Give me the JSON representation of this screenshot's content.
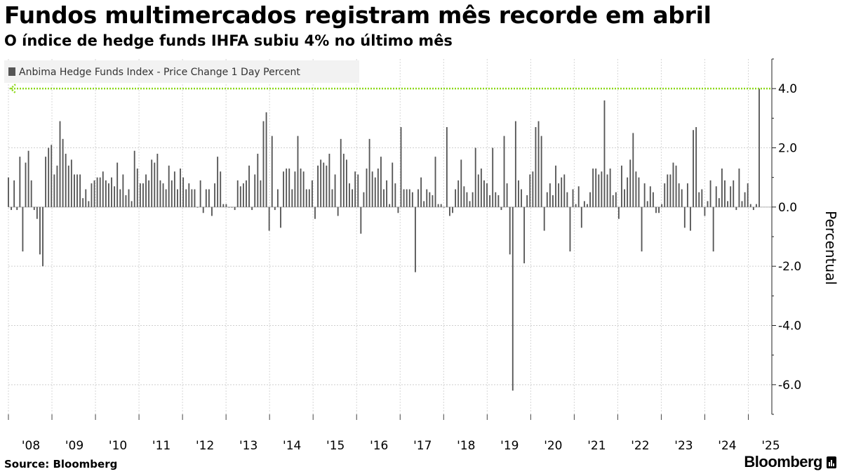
{
  "title": "Fundos multimercados registram mês recorde em abril",
  "subtitle": "O índice de hedge funds IHFA subiu 4% no último mês",
  "footer": {
    "source": "Source: Bloomberg",
    "brand": "Bloomberg"
  },
  "chart_data": {
    "type": "bar",
    "legend_position": "top-left",
    "grid": true,
    "ylabel": "Percentual",
    "ylim": [
      -7,
      5
    ],
    "yticks": [
      4,
      2,
      0,
      -2,
      -4,
      -6
    ],
    "ytick_labels": [
      "4.0",
      "2.0",
      "0.0",
      "-2.0",
      "-4.0",
      "-6.0"
    ],
    "xtick_labels": [
      "'08",
      "'09",
      "'10",
      "'11",
      "'12",
      "'13",
      "'14",
      "'15",
      "'16",
      "'17",
      "'18",
      "'19",
      "'20",
      "'21",
      "'22",
      "'23",
      "'24",
      "'25"
    ],
    "xtick_years": [
      2008,
      2009,
      2010,
      2011,
      2012,
      2013,
      2014,
      2015,
      2016,
      2017,
      2018,
      2019,
      2020,
      2021,
      2022,
      2023,
      2024,
      2025
    ],
    "start": "2008-01",
    "end": "2025-04",
    "reference_line": {
      "value": 4.0,
      "color": "#8ed81c"
    },
    "series": [
      {
        "name": "Anbima Hedge Funds Index - Price Change 1 Day Percent",
        "color": "#555555",
        "values": [
          1.0,
          -0.1,
          0.9,
          -0.1,
          1.7,
          -1.5,
          1.5,
          1.9,
          0.9,
          -0.1,
          -0.4,
          -1.6,
          -2.0,
          1.7,
          2.0,
          2.1,
          1.1,
          1.4,
          2.9,
          2.3,
          1.8,
          1.4,
          1.6,
          1.1,
          1.1,
          1.1,
          0.3,
          0.6,
          0.2,
          0.8,
          0.9,
          1.0,
          1.0,
          1.2,
          0.9,
          0.8,
          1.0,
          0.7,
          1.5,
          0.6,
          1.1,
          0.4,
          0.6,
          0.2,
          1.9,
          1.3,
          0.8,
          0.8,
          1.1,
          0.9,
          1.6,
          1.5,
          1.8,
          0.9,
          0.8,
          0.6,
          1.4,
          0.9,
          1.2,
          0.6,
          1.3,
          1.0,
          0.6,
          0.8,
          0.6,
          0.6,
          0.0,
          0.9,
          -0.2,
          0.6,
          0.6,
          -0.3,
          0.8,
          1.7,
          1.2,
          0.1,
          0.1,
          0.0,
          0.0,
          -0.1,
          0.9,
          0.7,
          0.8,
          0.9,
          1.4,
          -0.1,
          1.1,
          1.8,
          0.9,
          2.9,
          3.2,
          -0.8,
          2.4,
          -0.1,
          0.6,
          -0.7,
          1.2,
          1.3,
          1.3,
          0.6,
          1.2,
          2.4,
          1.3,
          1.2,
          0.6,
          0.6,
          0.9,
          -0.4,
          1.4,
          1.6,
          1.5,
          1.4,
          1.8,
          0.6,
          1.1,
          -0.3,
          2.3,
          1.8,
          1.6,
          0.8,
          0.6,
          1.2,
          1.1,
          -0.9,
          0.5,
          1.3,
          2.3,
          1.2,
          1.0,
          1.3,
          1.7,
          0.6,
          0.9,
          0.1,
          1.5,
          0.8,
          -0.2,
          2.7,
          0.6,
          0.6,
          0.6,
          0.5,
          -2.2,
          0.6,
          1.0,
          0.2,
          0.6,
          0.5,
          0.4,
          1.7,
          0.1,
          0.1,
          0.0,
          2.7,
          -0.3,
          -0.2,
          0.6,
          0.9,
          1.6,
          0.7,
          0.5,
          0.2,
          0.5,
          2.0,
          1.1,
          1.3,
          0.9,
          0.8,
          0.4,
          2.0,
          0.5,
          0.4,
          -0.1,
          2.4,
          0.8,
          -1.6,
          -6.2,
          2.9,
          0.9,
          0.6,
          -1.9,
          0.4,
          1.1,
          1.2,
          2.7,
          2.9,
          2.4,
          -0.8,
          0.5,
          0.8,
          0.4,
          1.4,
          0.8,
          1.0,
          1.1,
          0.5,
          -1.5,
          0.6,
          0.1,
          0.7,
          -0.7,
          0.2,
          0.1,
          0.5,
          1.3,
          1.3,
          1.1,
          1.2,
          3.6,
          1.1,
          1.3,
          0.4,
          0.5,
          -0.4,
          1.4,
          0.6,
          1.0,
          1.6,
          2.5,
          1.2,
          1.0,
          -1.5,
          0.8,
          0.2,
          0.7,
          0.5,
          -0.2,
          -0.2,
          0.1,
          0.8,
          1.1,
          1.1,
          1.5,
          1.4,
          0.8,
          0.6,
          -0.7,
          0.8,
          -0.8,
          2.6,
          2.7,
          0.5,
          0.6,
          -0.3,
          0.2,
          0.9,
          -1.5,
          0.7,
          0.3,
          1.3,
          0.9,
          0.2,
          0.7,
          0.9,
          -0.1,
          1.3,
          0.2,
          0.5,
          0.8,
          0.1,
          -0.1,
          0.1,
          4.0
        ]
      }
    ]
  }
}
